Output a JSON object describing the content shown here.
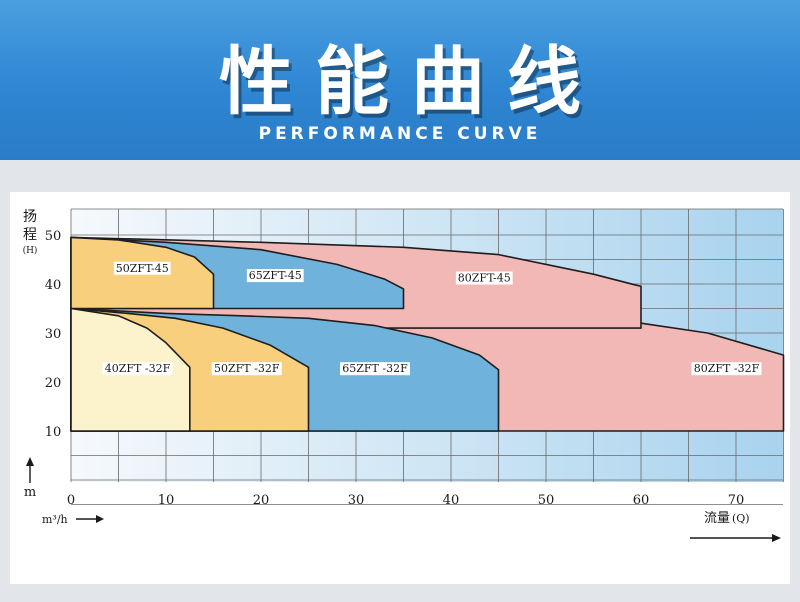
{
  "header": {
    "title": "性能曲线",
    "subtitle": "PERFORMANCE CURVE"
  },
  "chart_data": {
    "type": "area",
    "title": "",
    "ylabel_chars": [
      "扬",
      "程"
    ],
    "ylabel_unit": "(H)",
    "y_unit": "m",
    "xlabel": "流量",
    "xlabel_suffix": "(Q)",
    "x_unit": "m³/h",
    "xlim": [
      0,
      75
    ],
    "ylim": [
      -5,
      52
    ],
    "x_ticks": [
      0,
      10,
      20,
      30,
      40,
      50,
      60,
      70
    ],
    "y_ticks": [
      10,
      20,
      30,
      40,
      50
    ],
    "grid": true,
    "series": [
      {
        "name": "80ZFT -32F",
        "color": "#f2b8b5",
        "label_at": [
          69,
          22
        ],
        "points": [
          [
            0,
            35
          ],
          [
            15,
            35
          ],
          [
            30,
            34.5
          ],
          [
            40,
            34
          ],
          [
            50,
            33.5
          ],
          [
            60,
            32
          ],
          [
            67,
            30
          ],
          [
            75,
            25.5
          ],
          [
            75,
            10
          ],
          [
            0,
            10
          ]
        ]
      },
      {
        "name": "80ZFT-45",
        "color": "#f2b8b5",
        "label_at": [
          43.5,
          40.5
        ],
        "points": [
          [
            0,
            49.5
          ],
          [
            20,
            48.5
          ],
          [
            35,
            47.5
          ],
          [
            45,
            46
          ],
          [
            55,
            42
          ],
          [
            60,
            39.5
          ],
          [
            60,
            31
          ],
          [
            0,
            31
          ]
        ]
      },
      {
        "name": "65ZFT -32F",
        "color": "#6fb3dd",
        "label_at": [
          32,
          22
        ],
        "points": [
          [
            0,
            35
          ],
          [
            10,
            34
          ],
          [
            18,
            33.5
          ],
          [
            25,
            33
          ],
          [
            32,
            31.5
          ],
          [
            38,
            29
          ],
          [
            43,
            25.5
          ],
          [
            45,
            22.5
          ],
          [
            45,
            10
          ],
          [
            0,
            10
          ]
        ]
      },
      {
        "name": "65ZFT-45",
        "color": "#6fb3dd",
        "label_at": [
          21.5,
          41
        ],
        "points": [
          [
            0,
            49.5
          ],
          [
            10,
            48.5
          ],
          [
            20,
            47
          ],
          [
            28,
            44
          ],
          [
            33,
            41
          ],
          [
            35,
            39
          ],
          [
            35,
            35
          ],
          [
            0,
            35
          ]
        ]
      },
      {
        "name": "50ZFT -32F",
        "color": "#f8cf7c",
        "label_at": [
          18.5,
          22
        ],
        "points": [
          [
            0,
            35
          ],
          [
            6,
            34
          ],
          [
            11,
            33
          ],
          [
            16,
            31
          ],
          [
            21,
            27.5
          ],
          [
            25,
            23
          ],
          [
            25,
            10
          ],
          [
            0,
            10
          ]
        ]
      },
      {
        "name": "50ZFT-45",
        "color": "#f8cf7c",
        "label_at": [
          7.5,
          42.5
        ],
        "points": [
          [
            0,
            49.5
          ],
          [
            5,
            49
          ],
          [
            10,
            47.5
          ],
          [
            13,
            45.5
          ],
          [
            15,
            42
          ],
          [
            15,
            35
          ],
          [
            0,
            35
          ]
        ]
      },
      {
        "name": "40ZFT -32F",
        "color": "#fcf2cc",
        "label_at": [
          7,
          22
        ],
        "points": [
          [
            0,
            35
          ],
          [
            5,
            33.5
          ],
          [
            8,
            31
          ],
          [
            10,
            28
          ],
          [
            12.5,
            23
          ],
          [
            12.5,
            10
          ],
          [
            0,
            10
          ]
        ]
      }
    ]
  }
}
